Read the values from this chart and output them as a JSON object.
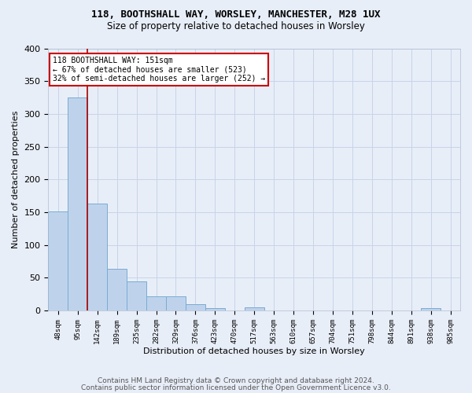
{
  "title1": "118, BOOTHSHALL WAY, WORSLEY, MANCHESTER, M28 1UX",
  "title2": "Size of property relative to detached houses in Worsley",
  "xlabel": "Distribution of detached houses by size in Worsley",
  "ylabel": "Number of detached properties",
  "footer1": "Contains HM Land Registry data © Crown copyright and database right 2024.",
  "footer2": "Contains public sector information licensed under the Open Government Licence v3.0.",
  "bin_labels": [
    "48sqm",
    "95sqm",
    "142sqm",
    "189sqm",
    "235sqm",
    "282sqm",
    "329sqm",
    "376sqm",
    "423sqm",
    "470sqm",
    "517sqm",
    "563sqm",
    "610sqm",
    "657sqm",
    "704sqm",
    "751sqm",
    "798sqm",
    "844sqm",
    "891sqm",
    "938sqm",
    "985sqm"
  ],
  "bar_heights": [
    151,
    325,
    163,
    64,
    44,
    21,
    21,
    9,
    4,
    0,
    5,
    0,
    0,
    0,
    0,
    0,
    0,
    0,
    0,
    4,
    0
  ],
  "bar_color": "#bed3eb",
  "bar_edge_color": "#7aabd4",
  "background_color": "#e8eef8",
  "grid_color": "#d8dff0",
  "red_line_x": 1.5,
  "annotation_line1": "118 BOOTHSHALL WAY: 151sqm",
  "annotation_line2": "← 67% of detached houses are smaller (523)",
  "annotation_line3": "32% of semi-detached houses are larger (252) →",
  "annotation_box_color": "#ffffff",
  "annotation_box_edge": "#cc0000",
  "ylim": [
    0,
    400
  ],
  "yticks": [
    0,
    50,
    100,
    150,
    200,
    250,
    300,
    350,
    400
  ]
}
